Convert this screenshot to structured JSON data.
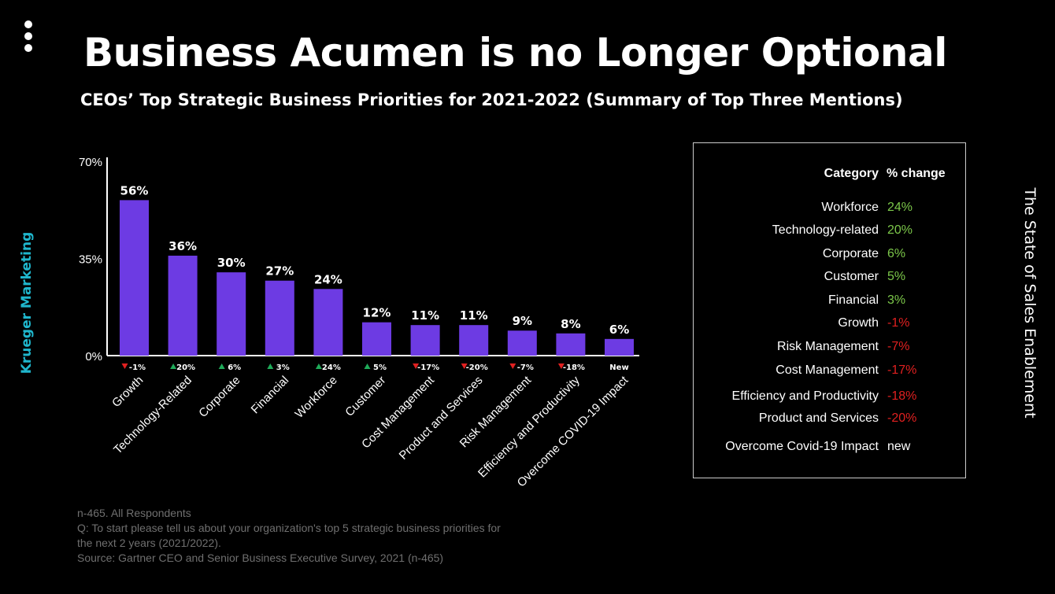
{
  "header": {
    "title": "Business Acumen is no Longer Optional",
    "subtitle": "CEOs’ Top Strategic Business Priorities for 2021-2022 (Summary of Top Three Mentions)"
  },
  "side_labels": {
    "left": "Krueger Marketing",
    "right": "The State of Sales Enablement"
  },
  "colors": {
    "bar": "#6d3be3",
    "up": "#1faa59",
    "down": "#e02020",
    "positive_text": "#7cc84a",
    "negative_text": "#e02020",
    "brand": "#1fb6cc"
  },
  "chart_data": {
    "type": "bar",
    "categories": [
      "Growth",
      "Technology-Related",
      "Corporate",
      "Financial",
      "Workforce",
      "Customer",
      "Cost Management",
      "Product and Services",
      "Risk Management",
      "Efficiency and Productivity",
      "Overcome COVID-19 Impact"
    ],
    "values": [
      56,
      36,
      30,
      27,
      24,
      12,
      11,
      11,
      9,
      8,
      6
    ],
    "value_labels": [
      "56%",
      "36%",
      "30%",
      "27%",
      "24%",
      "12%",
      "11%",
      "11%",
      "9%",
      "8%",
      "6%"
    ],
    "change_labels": [
      "-1%",
      "20%",
      "6%",
      "3%",
      "24%",
      "5%",
      "-17%",
      "-20%",
      "-7%",
      "-18%",
      "New"
    ],
    "change_direction": [
      "down",
      "up",
      "up",
      "up",
      "up",
      "up",
      "down",
      "down",
      "down",
      "down",
      "none"
    ],
    "y_ticks": [
      "0%",
      "35%",
      "70%"
    ],
    "y_tick_values": [
      0,
      35,
      70
    ],
    "ylim": [
      0,
      70
    ],
    "grid": false
  },
  "table": {
    "headers": {
      "category": "Category",
      "change": "% change"
    },
    "rows": [
      {
        "category": "Workforce",
        "change": "24%",
        "trend": "positive"
      },
      {
        "category": "Technology-related",
        "change": "20%",
        "trend": "positive"
      },
      {
        "category": "Corporate",
        "change": "6%",
        "trend": "positive"
      },
      {
        "category": "Customer",
        "change": "5%",
        "trend": "positive"
      },
      {
        "category": "Financial",
        "change": "3%",
        "trend": "positive"
      },
      {
        "category": "Growth",
        "change": "-1%",
        "trend": "negative"
      },
      {
        "category": "Risk Management",
        "change": "-7%",
        "trend": "negative"
      },
      {
        "category": "Cost Management",
        "change": "-17%",
        "trend": "negative"
      },
      {
        "category": "Efficiency and Productivity",
        "change": "-18%",
        "trend": "negative"
      },
      {
        "category": "Product and Services",
        "change": "-20%",
        "trend": "negative"
      },
      {
        "category": "Overcome Covid-19 Impact",
        "change": "new",
        "trend": "neutral"
      }
    ]
  },
  "footnote": [
    "n-465. All Respondents",
    "Q: To start please tell us about your organization's top 5 strategic business priorities for",
    "the next 2 years (2021/2022).",
    "Source: Gartner CEO and Senior Business Executive Survey, 2021 (n-465)"
  ]
}
